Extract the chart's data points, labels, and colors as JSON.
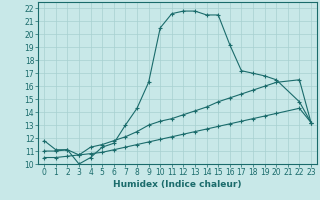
{
  "xlabel": "Humidex (Indice chaleur)",
  "bg_color": "#c8e8e8",
  "line_color": "#1a6b6b",
  "grid_color": "#a8d0d0",
  "xlim": [
    -0.5,
    23.5
  ],
  "ylim": [
    10,
    22.5
  ],
  "xticks": [
    0,
    1,
    2,
    3,
    4,
    5,
    6,
    7,
    8,
    9,
    10,
    11,
    12,
    13,
    14,
    15,
    16,
    17,
    18,
    19,
    20,
    21,
    22,
    23
  ],
  "yticks": [
    10,
    11,
    12,
    13,
    14,
    15,
    16,
    17,
    18,
    19,
    20,
    21,
    22
  ],
  "curve1_x": [
    0,
    1,
    2,
    3,
    4,
    5,
    6,
    7,
    8,
    9,
    10,
    11,
    12,
    13,
    14,
    15,
    16,
    17,
    18,
    19,
    20,
    22,
    23
  ],
  "curve1_y": [
    11.8,
    11.1,
    11.1,
    10.0,
    10.5,
    11.3,
    11.6,
    13.0,
    14.3,
    16.3,
    20.5,
    21.6,
    21.8,
    21.8,
    21.5,
    21.5,
    19.2,
    17.2,
    17.0,
    16.8,
    16.5,
    14.8,
    13.2
  ],
  "curve2_x": [
    0,
    1,
    2,
    3,
    4,
    5,
    6,
    7,
    8,
    9,
    10,
    11,
    12,
    13,
    14,
    15,
    16,
    17,
    18,
    19,
    20,
    22,
    23
  ],
  "curve2_y": [
    11.0,
    11.0,
    11.1,
    10.7,
    11.3,
    11.5,
    11.8,
    12.1,
    12.5,
    13.0,
    13.3,
    13.5,
    13.8,
    14.1,
    14.4,
    14.8,
    15.1,
    15.4,
    15.7,
    16.0,
    16.3,
    16.5,
    13.2
  ],
  "curve3_x": [
    0,
    1,
    2,
    3,
    4,
    5,
    6,
    7,
    8,
    9,
    10,
    11,
    12,
    13,
    14,
    15,
    16,
    17,
    18,
    19,
    20,
    22,
    23
  ],
  "curve3_y": [
    10.5,
    10.5,
    10.6,
    10.7,
    10.8,
    10.9,
    11.1,
    11.3,
    11.5,
    11.7,
    11.9,
    12.1,
    12.3,
    12.5,
    12.7,
    12.9,
    13.1,
    13.3,
    13.5,
    13.7,
    13.9,
    14.3,
    13.2
  ],
  "tick_fontsize": 5.5,
  "xlabel_fontsize": 6.5
}
